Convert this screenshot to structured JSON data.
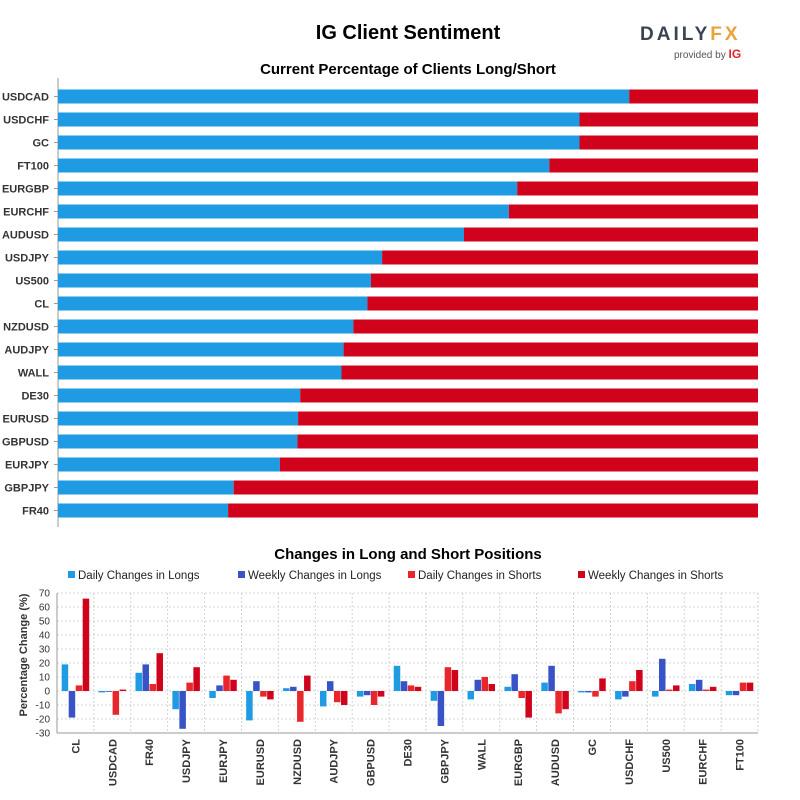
{
  "header": {
    "title": "IG Client Sentiment",
    "logo_brand": "DAILY",
    "logo_fx": "FX",
    "logo_provided": "provided by",
    "logo_ig": "IG"
  },
  "colors": {
    "long": "#1e9be2",
    "short": "#d1031c",
    "daily_long": "#1e9be2",
    "weekly_long": "#3753c7",
    "daily_short": "#e8262c",
    "weekly_short": "#d1031c",
    "grid": "#c8c8c8",
    "axis": "#999999"
  },
  "chart_data": [
    {
      "type": "bar",
      "orientation": "horizontal",
      "stacked": true,
      "title": "Current Percentage of Clients Long/Short",
      "categories": [
        "USDCAD",
        "USDCHF",
        "GC",
        "FT100",
        "EURGBP",
        "EURCHF",
        "AUDUSD",
        "USDJPY",
        "US500",
        "CL",
        "NZDUSD",
        "AUDJPY",
        "WALL",
        "DE30",
        "EURUSD",
        "GBPUSD",
        "EURJPY",
        "GBPJPY",
        "FR40"
      ],
      "series": [
        {
          "name": "Long",
          "values": [
            81.6,
            74.5,
            74.5,
            70.2,
            65.6,
            64.4,
            58.0,
            46.3,
            44.7,
            44.2,
            42.2,
            40.8,
            40.5,
            34.6,
            34.3,
            34.2,
            31.7,
            25.1,
            24.3
          ]
        },
        {
          "name": "Short",
          "values": [
            18.4,
            25.5,
            25.5,
            29.8,
            34.4,
            35.6,
            42.0,
            53.7,
            55.3,
            55.8,
            57.8,
            59.2,
            59.5,
            65.4,
            65.7,
            65.8,
            68.3,
            74.9,
            75.7
          ]
        }
      ],
      "xlim": [
        0,
        100
      ]
    },
    {
      "type": "bar",
      "title": "Changes in Long and Short Positions",
      "ylabel": "Percentage Change (%)",
      "ylim": [
        -30,
        70
      ],
      "yticks": [
        -30,
        -20,
        -10,
        0,
        10,
        20,
        30,
        40,
        50,
        60,
        70
      ],
      "categories": [
        "CL",
        "USDCAD",
        "FR40",
        "USDJPY",
        "EURJPY",
        "EURUSD",
        "NZDUSD",
        "AUDJPY",
        "GBPUSD",
        "DE30",
        "GBPJPY",
        "WALL",
        "EURGBP",
        "AUDUSD",
        "GC",
        "USDCHF",
        "US500",
        "EURCHF",
        "FT100"
      ],
      "series": [
        {
          "name": "Daily Changes in Longs",
          "values": [
            19,
            -1,
            13,
            -13,
            -5,
            -21,
            2,
            -11,
            -4,
            18,
            -7,
            -6,
            3,
            6,
            -1,
            -6,
            -4,
            5,
            -3
          ]
        },
        {
          "name": "Weekly Changes in Longs",
          "values": [
            -19,
            0,
            19,
            -27,
            4,
            7,
            3,
            7,
            -3,
            7,
            -25,
            8,
            12,
            18,
            -1,
            -4,
            23,
            8,
            -3
          ]
        },
        {
          "name": "Daily Changes in Shorts",
          "values": [
            4,
            -17,
            5,
            6,
            11,
            -4,
            -22,
            -8,
            -10,
            4,
            17,
            10,
            -5,
            -16,
            -4,
            7,
            1,
            1,
            6
          ]
        },
        {
          "name": "Weekly Changes in Shorts",
          "values": [
            66,
            1,
            27,
            17,
            8,
            -6,
            11,
            -10,
            -4,
            3,
            15,
            5,
            -19,
            -13,
            9,
            15,
            4,
            3,
            6
          ]
        }
      ]
    }
  ]
}
